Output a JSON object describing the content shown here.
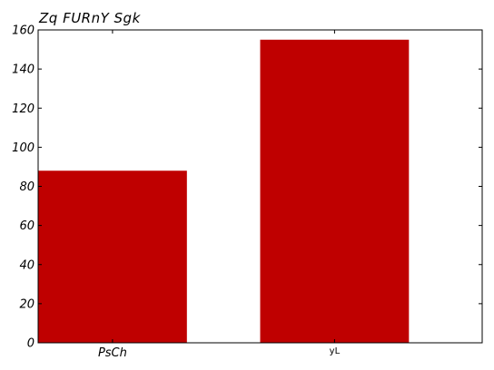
{
  "chart_data": {
    "type": "bar",
    "title": "Zq FURnY Sgk",
    "xlabel": "",
    "ylabel": "",
    "categories": [
      "PsCh",
      "yL"
    ],
    "values": [
      88,
      155
    ],
    "ylim": [
      0,
      160
    ],
    "yticks": [
      "0",
      "20",
      "40",
      "60",
      "80",
      "100",
      "120",
      "140",
      "160"
    ],
    "grid": false,
    "bar_color": "#bf0000"
  }
}
